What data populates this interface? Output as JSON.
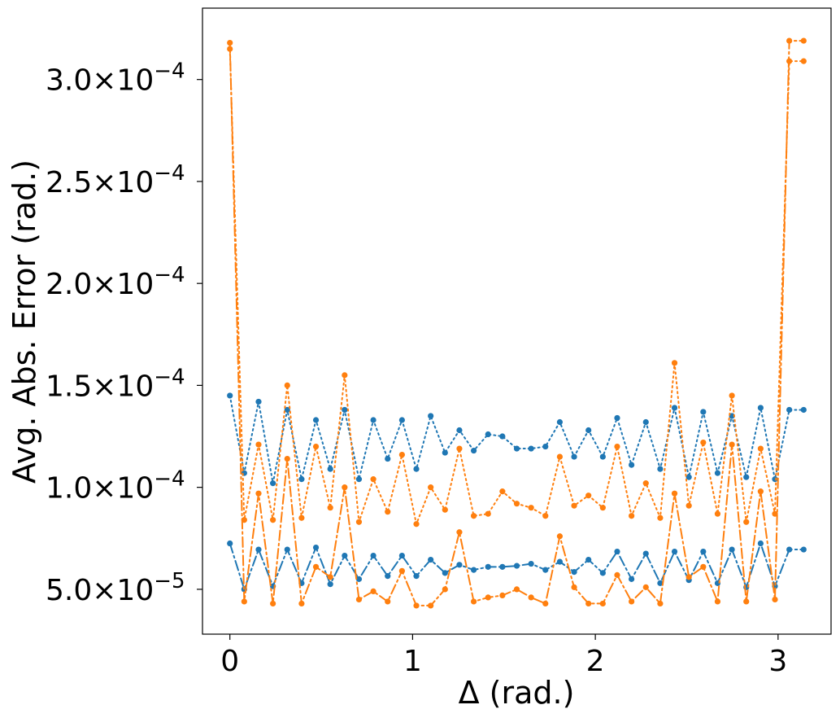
{
  "chart_data": {
    "type": "line",
    "xlabel": "Δ (rad.)",
    "ylabel": "Avg. Abs. Error (rad.)",
    "xlim": [
      -0.15,
      3.29
    ],
    "ylim": [
      2.8e-05,
      0.000335
    ],
    "grid": false,
    "x_ticks": [
      {
        "value": 0,
        "label": "0"
      },
      {
        "value": 1,
        "label": "1"
      },
      {
        "value": 2,
        "label": "2"
      },
      {
        "value": 3,
        "label": "3"
      }
    ],
    "y_ticks": [
      {
        "value": 5e-05,
        "label": "5.0×10",
        "exp": "−5"
      },
      {
        "value": 0.0001,
        "label": "1.0×10",
        "exp": "−4"
      },
      {
        "value": 0.00015,
        "label": "1.5×10",
        "exp": "−4"
      },
      {
        "value": 0.0002,
        "label": "2.0×10",
        "exp": "−4"
      },
      {
        "value": 0.00025,
        "label": "2.5×10",
        "exp": "−4"
      },
      {
        "value": 0.0003,
        "label": "3.0×10",
        "exp": "−4"
      }
    ],
    "x": [
      0,
      0.0785,
      0.157,
      0.2355,
      0.314,
      0.3925,
      0.471,
      0.5495,
      0.628,
      0.7065,
      0.785,
      0.8635,
      0.942,
      1.0205,
      1.099,
      1.1775,
      1.256,
      1.3345,
      1.413,
      1.4915,
      1.57,
      1.6485,
      1.727,
      1.8055,
      1.884,
      1.9625,
      2.041,
      2.1195,
      2.198,
      2.2765,
      2.355,
      2.4335,
      2.512,
      2.5905,
      2.669,
      2.7475,
      2.826,
      2.9045,
      2.983,
      3.0615,
      3.14
    ],
    "series": [
      {
        "color": "#1f77b4",
        "linestyle": "dotted",
        "values": [
          0.000145,
          0.000107,
          0.000142,
          0.000102,
          0.000138,
          0.000104,
          0.000133,
          0.000109,
          0.000138,
          0.000104,
          0.000133,
          0.000114,
          0.000133,
          0.000109,
          0.000135,
          0.000117,
          0.000128,
          0.000118,
          0.000126,
          0.000125,
          0.000119,
          0.000119,
          0.00012,
          0.000132,
          0.000115,
          0.000128,
          0.000115,
          0.000134,
          0.000111,
          0.000132,
          0.000109,
          0.000139,
          0.000105,
          0.000137,
          0.000107,
          0.000135,
          0.000105,
          0.000139,
          0.000104,
          0.000138,
          0.000138
        ]
      },
      {
        "color": "#1f77b4",
        "linestyle": "dashdot",
        "values": [
          7.25e-05,
          5e-05,
          6.95e-05,
          5.15e-05,
          6.95e-05,
          5.3e-05,
          7.05e-05,
          5.25e-05,
          6.65e-05,
          5.5e-05,
          6.65e-05,
          5.65e-05,
          6.65e-05,
          5.65e-05,
          6.45e-05,
          5.8e-05,
          6.2e-05,
          5.95e-05,
          6.1e-05,
          6.1e-05,
          6.15e-05,
          6.25e-05,
          5.95e-05,
          6.35e-05,
          5.85e-05,
          6.45e-05,
          5.8e-05,
          6.85e-05,
          5.5e-05,
          6.75e-05,
          5.3e-05,
          6.85e-05,
          5.45e-05,
          6.85e-05,
          5.3e-05,
          6.95e-05,
          5.1e-05,
          7.25e-05,
          5.15e-05,
          6.95e-05,
          6.95e-05
        ]
      },
      {
        "color": "#ff7f0e",
        "linestyle": "dotted",
        "values": [
          0.000315,
          8.4e-05,
          0.000121,
          8.4e-05,
          0.00015,
          8.5e-05,
          0.00012,
          9e-05,
          0.000155,
          8.3e-05,
          0.000104,
          8.8e-05,
          0.000116,
          8.2e-05,
          0.0001,
          8.9e-05,
          0.000119,
          8.6e-05,
          8.7e-05,
          9.8e-05,
          9.2e-05,
          9e-05,
          8.6e-05,
          0.000115,
          9.1e-05,
          9.6e-05,
          9e-05,
          0.00012,
          8.6e-05,
          0.000102,
          8.5e-05,
          0.000161,
          9.1e-05,
          0.000122,
          8.7e-05,
          0.000145,
          8.3e-05,
          0.000119,
          8.7e-05,
          0.000309,
          0.000309
        ]
      },
      {
        "color": "#ff7f0e",
        "linestyle": "dashdot",
        "values": [
          0.000318,
          4.4e-05,
          9.7e-05,
          4.3e-05,
          0.000114,
          4.3e-05,
          6.1e-05,
          5.6e-05,
          0.0001,
          4.5e-05,
          4.9e-05,
          4.4e-05,
          5.9e-05,
          4.2e-05,
          4.2e-05,
          5e-05,
          7.8e-05,
          4.4e-05,
          4.6e-05,
          4.7e-05,
          5e-05,
          4.6e-05,
          4.3e-05,
          7.6e-05,
          5.1e-05,
          4.3e-05,
          4.3e-05,
          5.7e-05,
          4.4e-05,
          5.1e-05,
          4.3e-05,
          9.7e-05,
          5.6e-05,
          6.1e-05,
          4.4e-05,
          0.000121,
          4.4e-05,
          9.8e-05,
          4.5e-05,
          0.000319,
          0.000319
        ]
      }
    ]
  }
}
